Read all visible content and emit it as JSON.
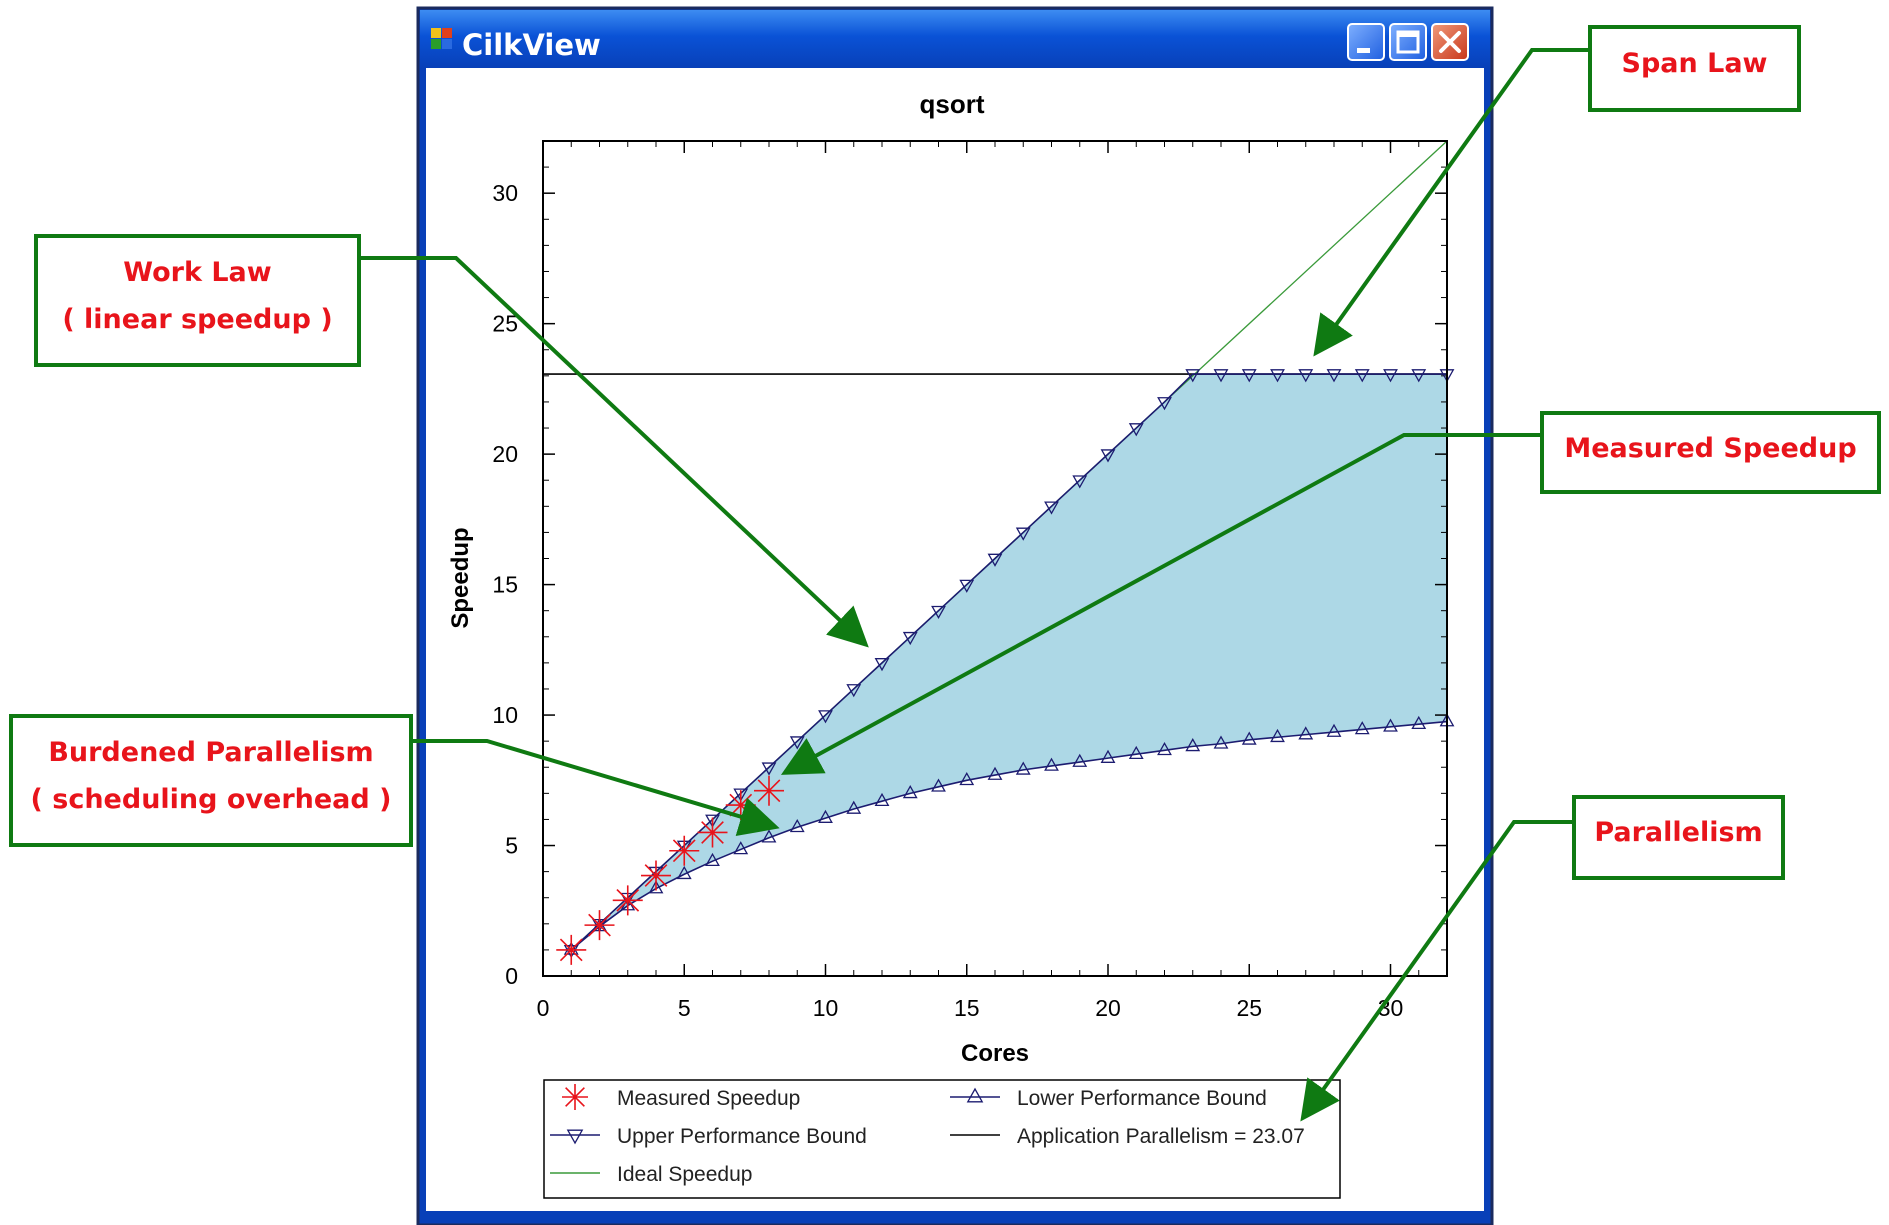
{
  "window": {
    "title": "CilkView",
    "buttons": [
      "minimize",
      "maximize",
      "close"
    ]
  },
  "chart_data": {
    "type": "line",
    "title": "qsort",
    "xlabel": "Cores",
    "ylabel": "Speedup",
    "xlim": [
      0,
      32
    ],
    "ylim": [
      0,
      32
    ],
    "xticks": [
      0,
      5,
      10,
      15,
      20,
      25,
      30
    ],
    "yticks": [
      0,
      5,
      10,
      15,
      20,
      25,
      30
    ],
    "grid": false,
    "legend_position": "bottom",
    "x": [
      1,
      2,
      3,
      4,
      5,
      6,
      7,
      8,
      9,
      10,
      11,
      12,
      13,
      14,
      15,
      16,
      17,
      18,
      19,
      20,
      21,
      22,
      23,
      24,
      25,
      26,
      27,
      28,
      29,
      30,
      31,
      32
    ],
    "series": [
      {
        "name": "Measured Speedup",
        "color": "#e8141b",
        "marker": "asterisk",
        "x": [
          1,
          2,
          3,
          4,
          5,
          6,
          7,
          8
        ],
        "values": [
          1.0,
          1.95,
          2.9,
          3.85,
          4.8,
          5.5,
          6.55,
          7.1
        ]
      },
      {
        "name": "Lower Performance Bound",
        "color": "#1c1c70",
        "marker": "triangle-up",
        "values": [
          1.0,
          1.9,
          2.7,
          3.35,
          3.9,
          4.4,
          4.85,
          5.3,
          5.7,
          6.05,
          6.4,
          6.7,
          7.0,
          7.25,
          7.5,
          7.7,
          7.9,
          8.05,
          8.2,
          8.35,
          8.5,
          8.65,
          8.8,
          8.9,
          9.05,
          9.15,
          9.25,
          9.35,
          9.45,
          9.55,
          9.65,
          9.75
        ]
      },
      {
        "name": "Upper Performance Bound",
        "color": "#1c1c70",
        "marker": "triangle-down",
        "values": [
          1,
          2,
          3,
          4,
          5,
          6,
          7,
          8,
          9,
          10,
          11,
          12,
          13,
          14,
          15,
          16,
          17,
          18,
          19,
          20,
          21,
          22,
          23.07,
          23.07,
          23.07,
          23.07,
          23.07,
          23.07,
          23.07,
          23.07,
          23.07,
          23.07
        ]
      },
      {
        "name": "Application Parallelism = 23.07",
        "color": "#000000",
        "marker": "none",
        "x": [
          0,
          32
        ],
        "values": [
          23.07,
          23.07
        ]
      },
      {
        "name": "Ideal Speedup",
        "color": "#3a9a3a",
        "marker": "none",
        "x": [
          1,
          32
        ],
        "values": [
          1,
          32
        ]
      }
    ],
    "shaded_region": {
      "between": [
        "Lower Performance Bound",
        "Upper Performance Bound"
      ],
      "color": "#add8e6"
    },
    "legend": [
      "Measured Speedup",
      "Lower Performance Bound",
      "Upper Performance Bound",
      "Application Parallelism = 23.07",
      "Ideal Speedup"
    ]
  },
  "callouts": [
    {
      "id": "span-law",
      "lines": [
        "Span Law"
      ]
    },
    {
      "id": "work-law",
      "lines": [
        "Work Law",
        "( linear speedup )"
      ]
    },
    {
      "id": "measured-speedup",
      "lines": [
        "Measured Speedup"
      ]
    },
    {
      "id": "burdened-parallelism",
      "lines": [
        "Burdened Parallelism",
        "( scheduling overhead )"
      ]
    },
    {
      "id": "parallelism",
      "lines": [
        "Parallelism"
      ]
    }
  ],
  "colors": {
    "titlebar": "#0a52d6",
    "callout_border": "#0f7a12",
    "callout_text": "#e8141b",
    "arrow": "#0f7a12",
    "shade": "#add8e6"
  }
}
